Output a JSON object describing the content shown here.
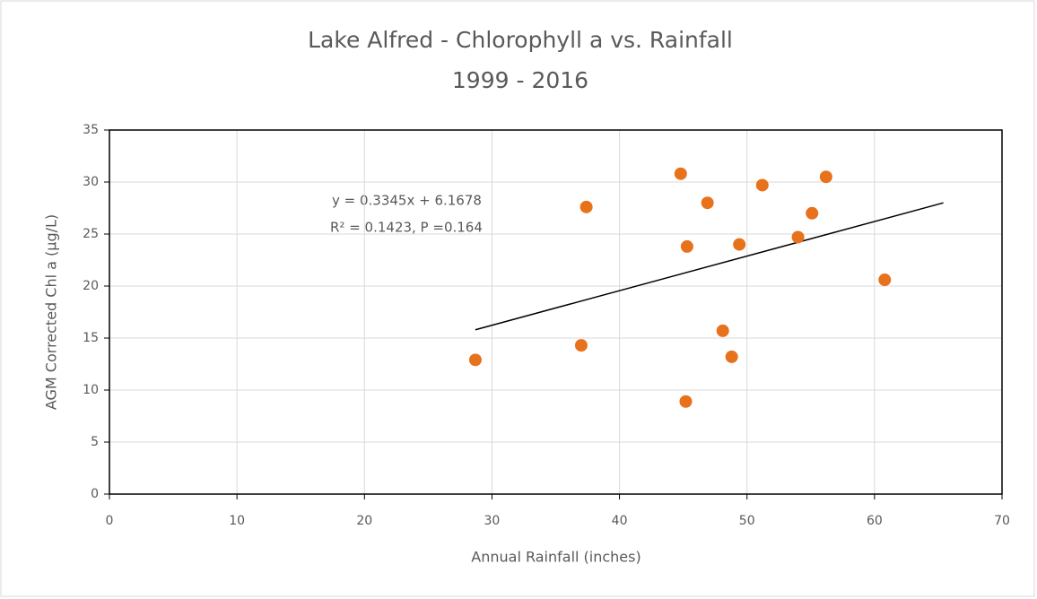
{
  "chart_data": {
    "type": "scatter",
    "title": "Lake Alfred - Chlorophyll a vs. Rainfall",
    "subtitle": "1999 - 2016",
    "x_label": "Annual Rainfall (inches)",
    "y_label": "AGM Corrected Chl a (µg/L)",
    "color": "#e8711c",
    "x": [
      28.7,
      37.0,
      37.4,
      44.8,
      45.3,
      45.2,
      46.9,
      48.1,
      48.8,
      49.4,
      51.2,
      54.0,
      55.1,
      56.2,
      60.8
    ],
    "values": [
      12.9,
      14.3,
      27.6,
      30.8,
      23.8,
      8.9,
      28.0,
      15.7,
      13.2,
      24.0,
      29.7,
      24.7,
      27.0,
      30.5,
      20.6
    ],
    "trendline": {
      "x": [
        28.7,
        65.4
      ],
      "values": [
        15.8,
        28.0
      ],
      "color": "#000000"
    },
    "annotations": [
      "y = 0.3345x + 6.1678",
      "R² = 0.1423, P =0.164"
    ],
    "xlim": [
      0,
      70
    ],
    "xticks": [
      0,
      10,
      20,
      30,
      40,
      50,
      60,
      70
    ],
    "ylim": [
      0,
      35
    ],
    "yticks": [
      0,
      5,
      10,
      15,
      20,
      25,
      30,
      35
    ],
    "grid": true
  }
}
